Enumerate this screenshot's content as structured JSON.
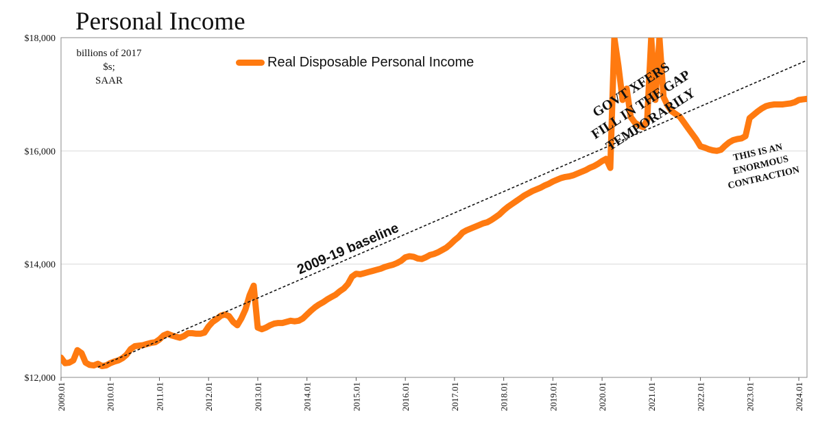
{
  "title": "Personal Income",
  "units_line1": "billions of 2017 $s;",
  "units_line2": "SAAR",
  "chart_data": {
    "type": "line",
    "title": "Personal Income",
    "ylim": [
      12000,
      18000
    ],
    "xlim": [
      "2009.01",
      "2024.03"
    ],
    "y_ticks": [
      "$12,000",
      "$14,000",
      "$16,000",
      "$18,000"
    ],
    "y_tick_values": [
      12000,
      14000,
      16000,
      18000
    ],
    "x_ticks": [
      "2009.01",
      "2010.01",
      "2011.01",
      "2012.01",
      "2013.01",
      "2014.01",
      "2015.01",
      "2016.01",
      "2017.01",
      "2018.01",
      "2019.01",
      "2020.01",
      "2021.01",
      "2022.01",
      "2023.01",
      "2024.01"
    ],
    "grid": "horizontal",
    "legend_position": "top-center",
    "series": [
      {
        "name": "Real Disposable Personal Income",
        "color": "#ff7a10",
        "points": [
          [
            "2009.01",
            12350
          ],
          [
            "2009.02",
            12250
          ],
          [
            "2009.03",
            12260
          ],
          [
            "2009.04",
            12300
          ],
          [
            "2009.05",
            12480
          ],
          [
            "2009.06",
            12430
          ],
          [
            "2009.07",
            12260
          ],
          [
            "2009.08",
            12220
          ],
          [
            "2009.09",
            12210
          ],
          [
            "2009.10",
            12240
          ],
          [
            "2009.11",
            12200
          ],
          [
            "2009.12",
            12210
          ],
          [
            "2010.01",
            12250
          ],
          [
            "2010.02",
            12280
          ],
          [
            "2010.03",
            12300
          ],
          [
            "2010.04",
            12340
          ],
          [
            "2010.05",
            12400
          ],
          [
            "2010.06",
            12500
          ],
          [
            "2010.07",
            12550
          ],
          [
            "2010.08",
            12560
          ],
          [
            "2010.09",
            12570
          ],
          [
            "2010.10",
            12590
          ],
          [
            "2010.11",
            12610
          ],
          [
            "2010.12",
            12620
          ],
          [
            "2011.01",
            12670
          ],
          [
            "2011.02",
            12740
          ],
          [
            "2011.03",
            12770
          ],
          [
            "2011.04",
            12740
          ],
          [
            "2011.05",
            12720
          ],
          [
            "2011.06",
            12700
          ],
          [
            "2011.07",
            12730
          ],
          [
            "2011.08",
            12780
          ],
          [
            "2011.09",
            12780
          ],
          [
            "2011.10",
            12770
          ],
          [
            "2011.11",
            12770
          ],
          [
            "2011.12",
            12790
          ],
          [
            "2012.01",
            12900
          ],
          [
            "2012.02",
            12980
          ],
          [
            "2012.03",
            13030
          ],
          [
            "2012.04",
            13090
          ],
          [
            "2012.05",
            13110
          ],
          [
            "2012.06",
            13080
          ],
          [
            "2012.07",
            12980
          ],
          [
            "2012.08",
            12920
          ],
          [
            "2012.09",
            13040
          ],
          [
            "2012.10",
            13200
          ],
          [
            "2012.11",
            13450
          ],
          [
            "2012.12",
            13620
          ],
          [
            "2013.01",
            12880
          ],
          [
            "2013.02",
            12850
          ],
          [
            "2013.03",
            12880
          ],
          [
            "2013.04",
            12920
          ],
          [
            "2013.05",
            12950
          ],
          [
            "2013.06",
            12960
          ],
          [
            "2013.07",
            12960
          ],
          [
            "2013.08",
            12980
          ],
          [
            "2013.09",
            13000
          ],
          [
            "2013.10",
            12990
          ],
          [
            "2013.11",
            13000
          ],
          [
            "2013.12",
            13040
          ],
          [
            "2014.01",
            13110
          ],
          [
            "2014.02",
            13180
          ],
          [
            "2014.03",
            13240
          ],
          [
            "2014.04",
            13290
          ],
          [
            "2014.05",
            13330
          ],
          [
            "2014.06",
            13380
          ],
          [
            "2014.07",
            13420
          ],
          [
            "2014.08",
            13460
          ],
          [
            "2014.09",
            13520
          ],
          [
            "2014.10",
            13570
          ],
          [
            "2014.11",
            13650
          ],
          [
            "2014.12",
            13780
          ],
          [
            "2015.01",
            13830
          ],
          [
            "2015.02",
            13820
          ],
          [
            "2015.03",
            13840
          ],
          [
            "2015.04",
            13860
          ],
          [
            "2015.05",
            13880
          ],
          [
            "2015.06",
            13900
          ],
          [
            "2015.07",
            13920
          ],
          [
            "2015.08",
            13950
          ],
          [
            "2015.09",
            13970
          ],
          [
            "2015.10",
            13990
          ],
          [
            "2015.11",
            14020
          ],
          [
            "2015.12",
            14060
          ],
          [
            "2016.01",
            14120
          ],
          [
            "2016.02",
            14140
          ],
          [
            "2016.03",
            14130
          ],
          [
            "2016.04",
            14100
          ],
          [
            "2016.05",
            14090
          ],
          [
            "2016.06",
            14120
          ],
          [
            "2016.07",
            14160
          ],
          [
            "2016.08",
            14180
          ],
          [
            "2016.09",
            14210
          ],
          [
            "2016.10",
            14250
          ],
          [
            "2016.11",
            14290
          ],
          [
            "2016.12",
            14350
          ],
          [
            "2017.01",
            14420
          ],
          [
            "2017.02",
            14480
          ],
          [
            "2017.03",
            14560
          ],
          [
            "2017.04",
            14600
          ],
          [
            "2017.05",
            14630
          ],
          [
            "2017.06",
            14660
          ],
          [
            "2017.07",
            14690
          ],
          [
            "2017.08",
            14720
          ],
          [
            "2017.09",
            14740
          ],
          [
            "2017.10",
            14780
          ],
          [
            "2017.11",
            14830
          ],
          [
            "2017.12",
            14880
          ],
          [
            "2018.01",
            14950
          ],
          [
            "2018.02",
            15010
          ],
          [
            "2018.03",
            15060
          ],
          [
            "2018.04",
            15110
          ],
          [
            "2018.05",
            15160
          ],
          [
            "2018.06",
            15210
          ],
          [
            "2018.07",
            15250
          ],
          [
            "2018.08",
            15290
          ],
          [
            "2018.09",
            15320
          ],
          [
            "2018.10",
            15350
          ],
          [
            "2018.11",
            15390
          ],
          [
            "2018.12",
            15420
          ],
          [
            "2019.01",
            15460
          ],
          [
            "2019.02",
            15490
          ],
          [
            "2019.03",
            15520
          ],
          [
            "2019.04",
            15540
          ],
          [
            "2019.05",
            15550
          ],
          [
            "2019.06",
            15570
          ],
          [
            "2019.07",
            15600
          ],
          [
            "2019.08",
            15630
          ],
          [
            "2019.09",
            15660
          ],
          [
            "2019.10",
            15700
          ],
          [
            "2019.11",
            15730
          ],
          [
            "2019.12",
            15770
          ],
          [
            "2020.01",
            15820
          ],
          [
            "2020.02",
            15860
          ],
          [
            "2020.03",
            15700
          ],
          [
            "2020.04",
            18000
          ],
          [
            "2020.05",
            17500
          ],
          [
            "2020.06",
            16900
          ],
          [
            "2020.07",
            17100
          ],
          [
            "2020.08",
            16600
          ],
          [
            "2020.09",
            16500
          ],
          [
            "2020.10",
            16450
          ],
          [
            "2020.11",
            16420
          ],
          [
            "2020.12",
            16550
          ],
          [
            "2021.01",
            18000
          ],
          [
            "2021.02",
            16900
          ],
          [
            "2021.03",
            18000
          ],
          [
            "2021.04",
            16950
          ],
          [
            "2021.05",
            16800
          ],
          [
            "2021.06",
            16700
          ],
          [
            "2021.07",
            16650
          ],
          [
            "2021.08",
            16600
          ],
          [
            "2021.09",
            16500
          ],
          [
            "2021.10",
            16400
          ],
          [
            "2021.11",
            16300
          ],
          [
            "2021.12",
            16200
          ],
          [
            "2022.01",
            16080
          ],
          [
            "2022.02",
            16060
          ],
          [
            "2022.03",
            16030
          ],
          [
            "2022.04",
            16010
          ],
          [
            "2022.05",
            16000
          ],
          [
            "2022.06",
            16020
          ],
          [
            "2022.07",
            16090
          ],
          [
            "2022.08",
            16150
          ],
          [
            "2022.09",
            16190
          ],
          [
            "2022.10",
            16210
          ],
          [
            "2022.11",
            16220
          ],
          [
            "2022.12",
            16260
          ],
          [
            "2023.01",
            16580
          ],
          [
            "2023.02",
            16640
          ],
          [
            "2023.03",
            16700
          ],
          [
            "2023.04",
            16750
          ],
          [
            "2023.05",
            16790
          ],
          [
            "2023.06",
            16810
          ],
          [
            "2023.07",
            16820
          ],
          [
            "2023.08",
            16820
          ],
          [
            "2023.09",
            16820
          ],
          [
            "2023.10",
            16830
          ],
          [
            "2023.11",
            16840
          ],
          [
            "2023.12",
            16860
          ],
          [
            "2024.01",
            16900
          ],
          [
            "2024.02",
            16910
          ],
          [
            "2024.03",
            16920
          ]
        ]
      }
    ],
    "baseline": {
      "label": "2009-19 baseline",
      "style": "dashed",
      "color": "#111111",
      "start": [
        "2009.10",
        12180
      ],
      "end": [
        "2024.03",
        17600
      ]
    },
    "annotations": [
      {
        "lines": [
          "GOVT XFERS",
          "FILL IN THE GAP",
          "TEMPORARILY"
        ]
      },
      {
        "lines": [
          "THIS IS AN",
          "ENORMOUS",
          "CONTRACTION"
        ]
      }
    ]
  }
}
